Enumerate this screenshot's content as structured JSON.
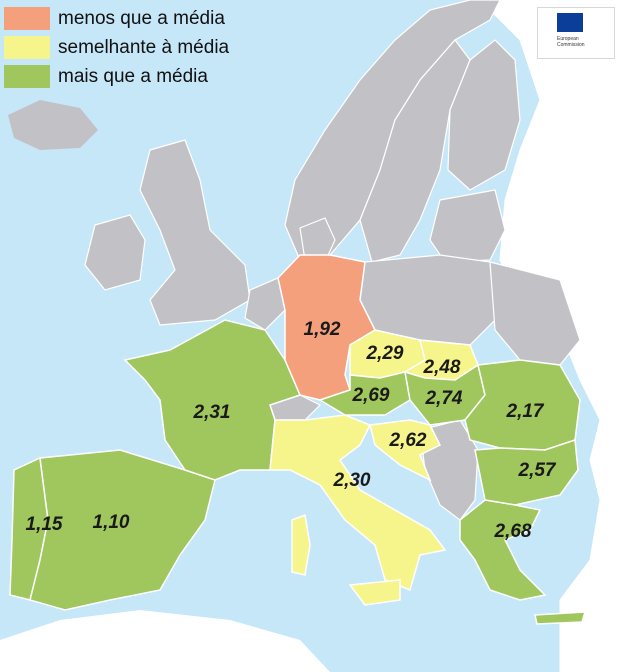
{
  "legend": {
    "items": [
      {
        "label": "menos que a média",
        "color": "#f4a07c"
      },
      {
        "label": "semelhante à média",
        "color": "#f6f58c"
      },
      {
        "label": "mais que a média",
        "color": "#a0c65e"
      }
    ]
  },
  "colors": {
    "sea": "#c6e7f7",
    "other_land": "#c2c2c6",
    "non_eu": "#ffffff",
    "border": "#ffffff"
  },
  "logo": {
    "line1": "European",
    "line2": "Commission"
  },
  "regions": [
    {
      "id": "portugal",
      "value": "1,15",
      "category": "mais"
    },
    {
      "id": "spain",
      "value": "1,10",
      "category": "mais"
    },
    {
      "id": "france",
      "value": "2,31",
      "category": "mais"
    },
    {
      "id": "germany",
      "value": "1,92",
      "category": "menos"
    },
    {
      "id": "czechia",
      "value": "2,29",
      "category": "semelhante"
    },
    {
      "id": "slovakia",
      "value": "2,48",
      "category": "semelhante"
    },
    {
      "id": "austria",
      "value": "2,69",
      "category": "mais"
    },
    {
      "id": "hungary",
      "value": "2,74",
      "category": "mais"
    },
    {
      "id": "romania",
      "value": "2,17",
      "category": "mais"
    },
    {
      "id": "croatia",
      "value": "2,62",
      "category": "semelhante"
    },
    {
      "id": "italy",
      "value": "2,30",
      "category": "semelhante"
    },
    {
      "id": "bulgaria",
      "value": "2,57",
      "category": "mais"
    },
    {
      "id": "greece",
      "value": "2,68",
      "category": "mais"
    }
  ]
}
